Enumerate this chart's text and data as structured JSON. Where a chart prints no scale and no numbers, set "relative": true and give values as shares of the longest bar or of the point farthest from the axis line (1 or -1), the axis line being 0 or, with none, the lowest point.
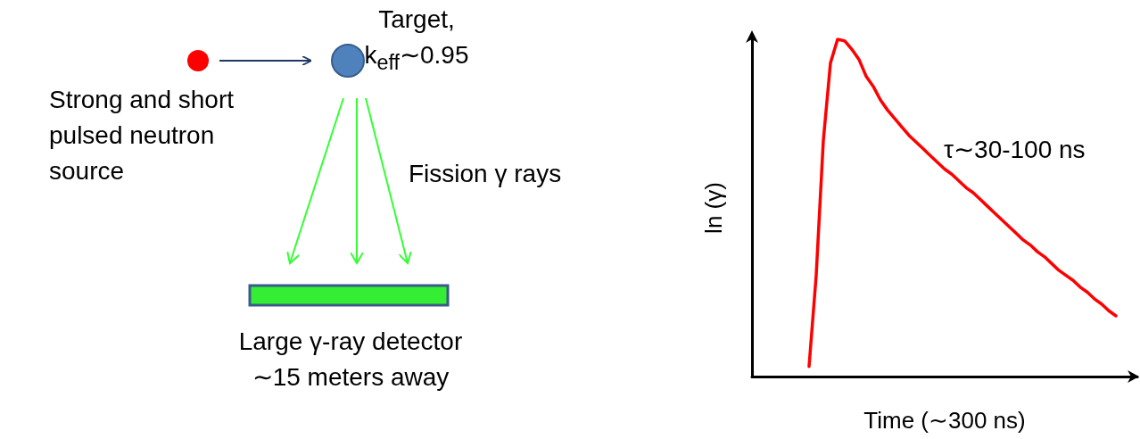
{
  "chart_data": {
    "type": "line",
    "relative": true,
    "xlabel": "Time (∼300 ns)",
    "ylabel": "ln (γ)",
    "categories": [
      null,
      null,
      null,
      null,
      null,
      null,
      null,
      null,
      null,
      null,
      null,
      null,
      null,
      null,
      null,
      null,
      null,
      null,
      null,
      null,
      null,
      null,
      null,
      null,
      null,
      null,
      null,
      null,
      null,
      null,
      null,
      null,
      null,
      null,
      null,
      null,
      null,
      null,
      null,
      null,
      null,
      null,
      null,
      null,
      null,
      null,
      null,
      null,
      null,
      null,
      null,
      null,
      null,
      null,
      null
    ],
    "series": [
      {
        "color": "#ff0000",
        "values": [
          null,
          null,
          null,
          null,
          null,
          null,
          null,
          null,
          0.03,
          0.3,
          0.7,
          0.93,
          1.0,
          0.995,
          0.97,
          0.94,
          0.89,
          0.86,
          0.82,
          0.79,
          0.765,
          0.74,
          0.715,
          0.695,
          0.675,
          0.655,
          0.635,
          0.615,
          0.6,
          0.58,
          0.56,
          0.545,
          0.525,
          0.505,
          0.485,
          0.465,
          0.445,
          0.425,
          0.405,
          0.39,
          0.37,
          0.355,
          0.335,
          0.315,
          0.3,
          0.285,
          0.265,
          0.25,
          0.23,
          0.215,
          0.195,
          0.18,
          null,
          null,
          null
        ]
      }
    ],
    "annotations": [
      "Strong and short pulsed neutron source",
      "Target, k$_{eff}$∼0.95",
      "Fission γ rays",
      "Large γ-ray detector ∼15 meters away",
      "τ∼30-100 ns"
    ],
    "grid": false,
    "marker": "none",
    "line_style": "solid"
  }
}
